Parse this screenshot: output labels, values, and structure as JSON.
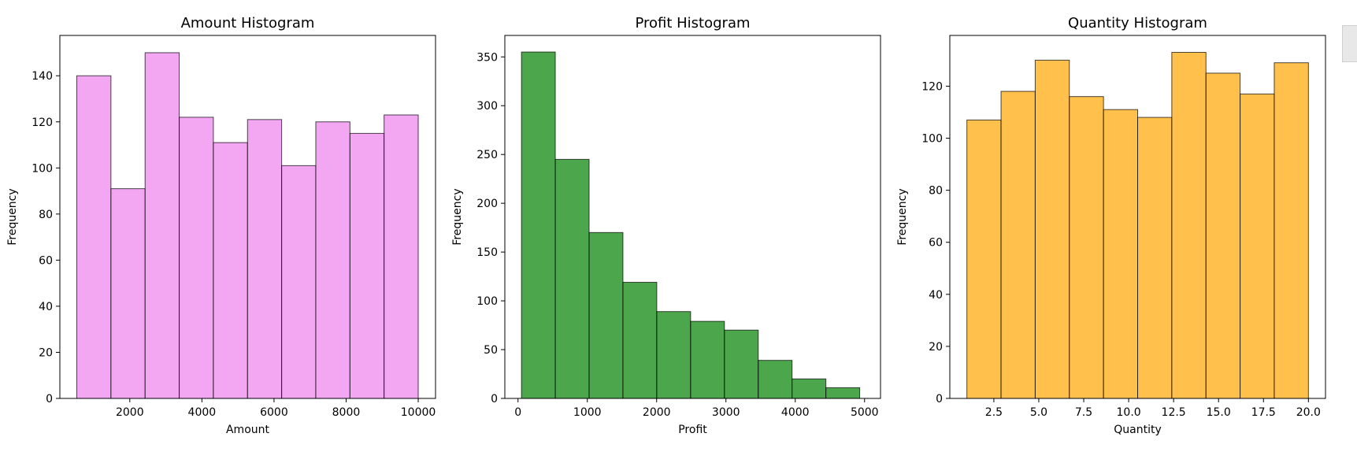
{
  "chart_data": [
    {
      "type": "bar",
      "title": "Amount Histogram",
      "xlabel": "Amount",
      "ylabel": "Frequency",
      "color": "#EE82EE",
      "edge_color": "#000000",
      "xlim": [
        60,
        10480
      ],
      "ylim": [
        0,
        157.5
      ],
      "xticks": [
        2000,
        4000,
        6000,
        8000,
        10000
      ],
      "xtick_labels": [
        "2000",
        "4000",
        "6000",
        "8000",
        "10000"
      ],
      "yticks": [
        0,
        20,
        40,
        60,
        80,
        100,
        120,
        140
      ],
      "ytick_labels": [
        "0",
        "20",
        "40",
        "60",
        "80",
        "100",
        "120",
        "140"
      ],
      "bin_edges": [
        530,
        1477,
        2424,
        3371,
        4318,
        5265,
        6212,
        7159,
        8106,
        9053,
        10000
      ],
      "values": [
        140,
        91,
        150,
        122,
        111,
        121,
        101,
        120,
        115,
        123
      ]
    },
    {
      "type": "bar",
      "title": "Profit Histogram",
      "xlabel": "Profit",
      "ylabel": "Frequency",
      "color": "#008000",
      "edge_color": "#000000",
      "xlim": [
        -190,
        5230
      ],
      "ylim": [
        0,
        372
      ],
      "xticks": [
        0,
        1000,
        2000,
        3000,
        4000,
        5000
      ],
      "xtick_labels": [
        "0",
        "1000",
        "2000",
        "3000",
        "4000",
        "5000"
      ],
      "yticks": [
        0,
        50,
        100,
        150,
        200,
        250,
        300,
        350
      ],
      "ytick_labels": [
        "0",
        "50",
        "100",
        "150",
        "200",
        "250",
        "300",
        "350"
      ],
      "bin_edges": [
        50,
        538,
        1026,
        1514,
        2002,
        2490,
        2978,
        3466,
        3954,
        4442,
        4930
      ],
      "values": [
        355,
        245,
        170,
        119,
        89,
        79,
        70,
        39,
        20,
        11
      ]
    },
    {
      "type": "bar",
      "title": "Quantity Histogram",
      "xlabel": "Quantity",
      "ylabel": "Frequency",
      "color": "#FFA500",
      "edge_color": "#000000",
      "xlim": [
        0.05,
        20.95
      ],
      "ylim": [
        0,
        139.5
      ],
      "xticks": [
        2.5,
        5.0,
        7.5,
        10.0,
        12.5,
        15.0,
        17.5,
        20.0
      ],
      "xtick_labels": [
        "2.5",
        "5.0",
        "7.5",
        "10.0",
        "12.5",
        "15.0",
        "17.5",
        "20.0"
      ],
      "yticks": [
        0,
        20,
        40,
        60,
        80,
        100,
        120
      ],
      "ytick_labels": [
        "0",
        "20",
        "40",
        "60",
        "80",
        "100",
        "120"
      ],
      "bin_edges": [
        1.0,
        2.9,
        4.8,
        6.7,
        8.6,
        10.5,
        12.4,
        14.3,
        16.2,
        18.1,
        20.0
      ],
      "values": [
        107,
        118,
        130,
        116,
        111,
        108,
        133,
        125,
        117,
        129
      ]
    }
  ]
}
